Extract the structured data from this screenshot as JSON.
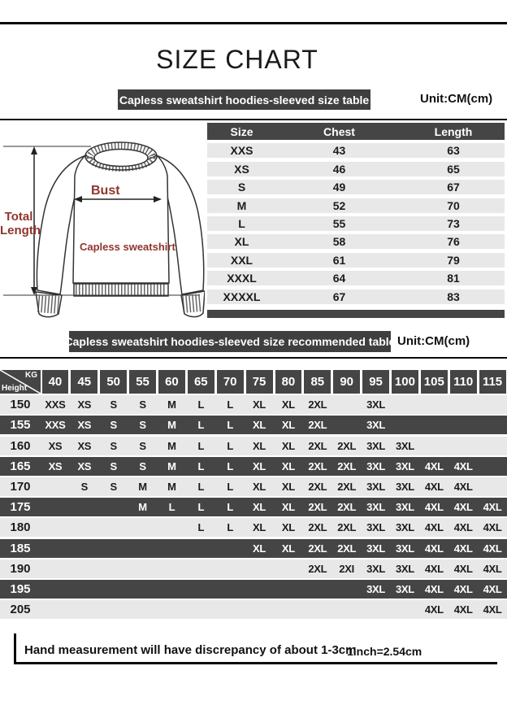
{
  "page": {
    "title": "SIZE CHART",
    "unit_label": "Unit:CM(cm)",
    "footer_note": "Hand measurement will have discrepancy of about  1-3cm",
    "footer_conversion": "1inch=2.54cm"
  },
  "diagram": {
    "bust_label": "Bust",
    "total_length_label": "Total Length",
    "product_label": "Capless sweatshirt"
  },
  "size_table": {
    "banner": "Capless sweatshirt hoodies-sleeved size  table",
    "columns": [
      "Size",
      "Chest",
      "Length"
    ],
    "rows": [
      {
        "size": "XXS",
        "chest": "43",
        "length": "63"
      },
      {
        "size": "XS",
        "chest": "46",
        "length": "65"
      },
      {
        "size": "S",
        "chest": "49",
        "length": "67"
      },
      {
        "size": "M",
        "chest": "52",
        "length": "70"
      },
      {
        "size": "L",
        "chest": "55",
        "length": "73"
      },
      {
        "size": "XL",
        "chest": "58",
        "length": "76"
      },
      {
        "size": "XXL",
        "chest": "61",
        "length": "79"
      },
      {
        "size": "XXXL",
        "chest": "64",
        "length": "81"
      },
      {
        "size": "XXXXL",
        "chest": "67",
        "length": "83"
      }
    ]
  },
  "recommended_table": {
    "banner": "Capless sweatshirt hoodies-sleeved size recommended table",
    "corner_top": "KG",
    "corner_bottom": "Height",
    "weights": [
      "40",
      "45",
      "50",
      "55",
      "60",
      "65",
      "70",
      "75",
      "80",
      "85",
      "90",
      "95",
      "100",
      "105",
      "110",
      "115"
    ],
    "rows": [
      {
        "height": "150",
        "cells": [
          "XXS",
          "XS",
          "S",
          "S",
          "M",
          "L",
          "L",
          "XL",
          "XL",
          "2XL",
          "",
          "3XL",
          "",
          "",
          "",
          ""
        ]
      },
      {
        "height": "155",
        "cells": [
          "XXS",
          "XS",
          "S",
          "S",
          "M",
          "L",
          "L",
          "XL",
          "XL",
          "2XL",
          "",
          "3XL",
          "",
          "",
          "",
          ""
        ]
      },
      {
        "height": "160",
        "cells": [
          "XS",
          "XS",
          "S",
          "S",
          "M",
          "L",
          "L",
          "XL",
          "XL",
          "2XL",
          "2XL",
          "3XL",
          "3XL",
          "",
          "",
          ""
        ]
      },
      {
        "height": "165",
        "cells": [
          "XS",
          "XS",
          "S",
          "S",
          "M",
          "L",
          "L",
          "XL",
          "XL",
          "2XL",
          "2XL",
          "3XL",
          "3XL",
          "4XL",
          "4XL",
          ""
        ]
      },
      {
        "height": "170",
        "cells": [
          "",
          "S",
          "S",
          "M",
          "M",
          "L",
          "L",
          "XL",
          "XL",
          "2XL",
          "2XL",
          "3XL",
          "3XL",
          "4XL",
          "4XL",
          ""
        ]
      },
      {
        "height": "175",
        "cells": [
          "",
          "",
          "",
          "M",
          "L",
          "L",
          "L",
          "XL",
          "XL",
          "2XL",
          "2XL",
          "3XL",
          "3XL",
          "4XL",
          "4XL",
          "4XL"
        ]
      },
      {
        "height": "180",
        "cells": [
          "",
          "",
          "",
          "",
          "",
          "L",
          "L",
          "XL",
          "XL",
          "2XL",
          "2XL",
          "3XL",
          "3XL",
          "4XL",
          "4XL",
          "4XL"
        ]
      },
      {
        "height": "185",
        "cells": [
          "",
          "",
          "",
          "",
          "",
          "",
          "",
          "XL",
          "XL",
          "2XL",
          "2XL",
          "3XL",
          "3XL",
          "4XL",
          "4XL",
          "4XL"
        ]
      },
      {
        "height": "190",
        "cells": [
          "",
          "",
          "",
          "",
          "",
          "",
          "",
          "",
          "",
          "2XL",
          "2XI",
          "3XL",
          "3XL",
          "4XL",
          "4XL",
          "4XL"
        ]
      },
      {
        "height": "195",
        "cells": [
          "",
          "",
          "",
          "",
          "",
          "",
          "",
          "",
          "",
          "",
          "",
          "3XL",
          "3XL",
          "4XL",
          "4XL",
          "4XL"
        ]
      },
      {
        "height": "205",
        "cells": [
          "",
          "",
          "",
          "",
          "",
          "",
          "",
          "",
          "",
          "",
          "",
          "",
          "",
          "4XL",
          "4XL",
          "4XL"
        ]
      }
    ]
  }
}
